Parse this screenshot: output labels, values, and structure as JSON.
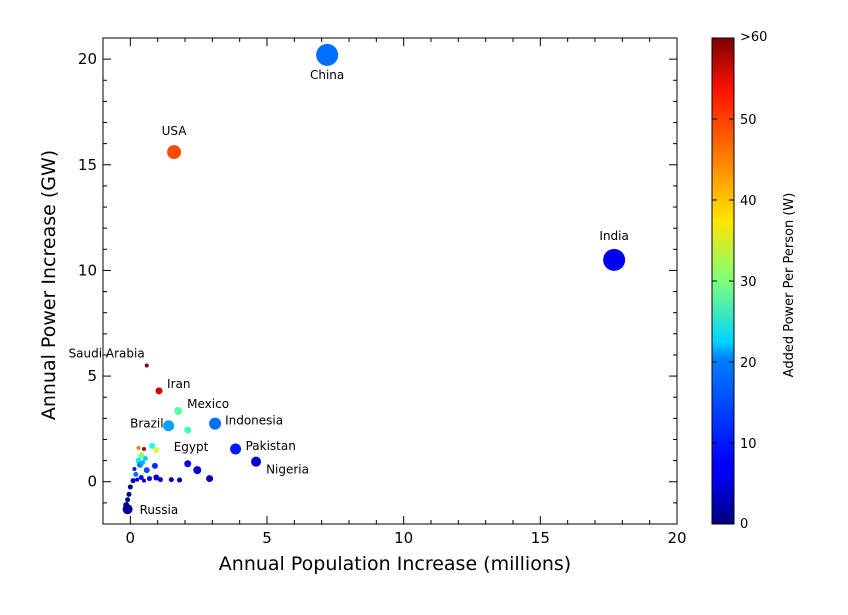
{
  "chart_data": {
    "type": "scatter",
    "xlabel": "Annual Population Increase (millions)",
    "ylabel": "Annual Power Increase (GW)",
    "xlim": [
      -1,
      20
    ],
    "ylim": [
      -2,
      21
    ],
    "x_ticks": [
      0,
      5,
      10,
      15,
      20
    ],
    "y_ticks": [
      0,
      5,
      10,
      15,
      20
    ],
    "x_tick_labels": [
      "0",
      "5",
      "10",
      "15",
      "20"
    ],
    "y_tick_labels": [
      "0",
      "5",
      "10",
      "15",
      "20"
    ],
    "grid": false,
    "colorbar": {
      "label": "Added Power Per Person (W)",
      "min": 0,
      "max": 60,
      "ticks": [
        0,
        10,
        20,
        30,
        40,
        50,
        60
      ],
      "tick_labels": [
        "0",
        "10",
        "20",
        "30",
        "40",
        "50",
        ">60"
      ],
      "colormap": "jet"
    },
    "points": [
      {
        "label": "China",
        "x": 7.2,
        "y": 20.2,
        "c": 14,
        "size": 11
      },
      {
        "label": "USA",
        "x": 1.6,
        "y": 15.6,
        "c": 48,
        "size": 7
      },
      {
        "label": "India",
        "x": 17.7,
        "y": 10.5,
        "c": 7,
        "size": 11
      },
      {
        "label": "Saudi Arabia",
        "x": 0.6,
        "y": 5.5,
        "c": 62,
        "size": 2
      },
      {
        "label": "Iran",
        "x": 1.05,
        "y": 4.3,
        "c": 55,
        "size": 3.5
      },
      {
        "label": "Mexico",
        "x": 1.75,
        "y": 3.35,
        "c": 28,
        "size": 4
      },
      {
        "label": "Indonesia",
        "x": 3.1,
        "y": 2.75,
        "c": 14,
        "size": 6
      },
      {
        "label": "Brazil",
        "x": 1.4,
        "y": 2.65,
        "c": 17,
        "size": 5.5
      },
      {
        "label": "Egypt",
        "x": 2.1,
        "y": 2.45,
        "c": 26,
        "size": 3.5
      },
      {
        "label": "Pakistan",
        "x": 3.85,
        "y": 1.55,
        "c": 9,
        "size": 5.5
      },
      {
        "label": "Nigeria",
        "x": 4.6,
        "y": 0.95,
        "c": 5,
        "size": 5
      },
      {
        "label": "Russia",
        "x": -0.1,
        "y": -1.3,
        "c": 1,
        "size": 5
      },
      {
        "label": "",
        "x": 0.3,
        "y": 1.6,
        "c": 45,
        "size": 2
      },
      {
        "label": "",
        "x": 0.5,
        "y": 1.55,
        "c": 58,
        "size": 2
      },
      {
        "label": "",
        "x": 0.8,
        "y": 1.7,
        "c": 24,
        "size": 3
      },
      {
        "label": "",
        "x": 0.95,
        "y": 1.5,
        "c": 35,
        "size": 3
      },
      {
        "label": "",
        "x": 0.4,
        "y": 1.25,
        "c": 30,
        "size": 3
      },
      {
        "label": "",
        "x": 0.3,
        "y": 1.0,
        "c": 22,
        "size": 3
      },
      {
        "label": "",
        "x": 0.55,
        "y": 1.1,
        "c": 20,
        "size": 2.5
      },
      {
        "label": "",
        "x": 0.35,
        "y": 0.8,
        "c": 15,
        "size": 3
      },
      {
        "label": "",
        "x": 0.6,
        "y": 0.55,
        "c": 12,
        "size": 3
      },
      {
        "label": "",
        "x": 0.9,
        "y": 0.75,
        "c": 10,
        "size": 3
      },
      {
        "label": "",
        "x": 0.2,
        "y": 0.35,
        "c": 14,
        "size": 2.5
      },
      {
        "label": "",
        "x": 0.4,
        "y": 0.2,
        "c": 8,
        "size": 2.5
      },
      {
        "label": "",
        "x": 0.7,
        "y": 0.15,
        "c": 6,
        "size": 2.5
      },
      {
        "label": "",
        "x": 0.95,
        "y": 0.2,
        "c": 5,
        "size": 3
      },
      {
        "label": "",
        "x": 1.1,
        "y": 0.1,
        "c": 4,
        "size": 2.5
      },
      {
        "label": "",
        "x": 1.5,
        "y": 0.1,
        "c": 3,
        "size": 2.5
      },
      {
        "label": "",
        "x": 1.8,
        "y": 0.08,
        "c": 3,
        "size": 2.5
      },
      {
        "label": "",
        "x": 2.1,
        "y": 0.85,
        "c": 6,
        "size": 3.5
      },
      {
        "label": "",
        "x": 2.45,
        "y": 0.55,
        "c": 5,
        "size": 4
      },
      {
        "label": "",
        "x": 2.9,
        "y": 0.15,
        "c": 3,
        "size": 3.5
      },
      {
        "label": "",
        "x": 0.1,
        "y": 0.05,
        "c": 3,
        "size": 2.5
      },
      {
        "label": "",
        "x": 0.25,
        "y": 0.1,
        "c": 5,
        "size": 2
      },
      {
        "label": "",
        "x": 0.5,
        "y": 0.05,
        "c": 4,
        "size": 2
      },
      {
        "label": "",
        "x": 0.0,
        "y": -0.25,
        "c": 1,
        "size": 2.5
      },
      {
        "label": "",
        "x": -0.05,
        "y": -0.6,
        "c": 1,
        "size": 2.5
      },
      {
        "label": "",
        "x": -0.1,
        "y": -0.85,
        "c": 1,
        "size": 2.5
      },
      {
        "label": "",
        "x": -0.15,
        "y": -1.1,
        "c": 1,
        "size": 3
      },
      {
        "label": "",
        "x": 0.15,
        "y": 0.6,
        "c": 9,
        "size": 2
      },
      {
        "label": "",
        "x": 0.45,
        "y": 0.9,
        "c": 18,
        "size": 2.5
      }
    ]
  }
}
